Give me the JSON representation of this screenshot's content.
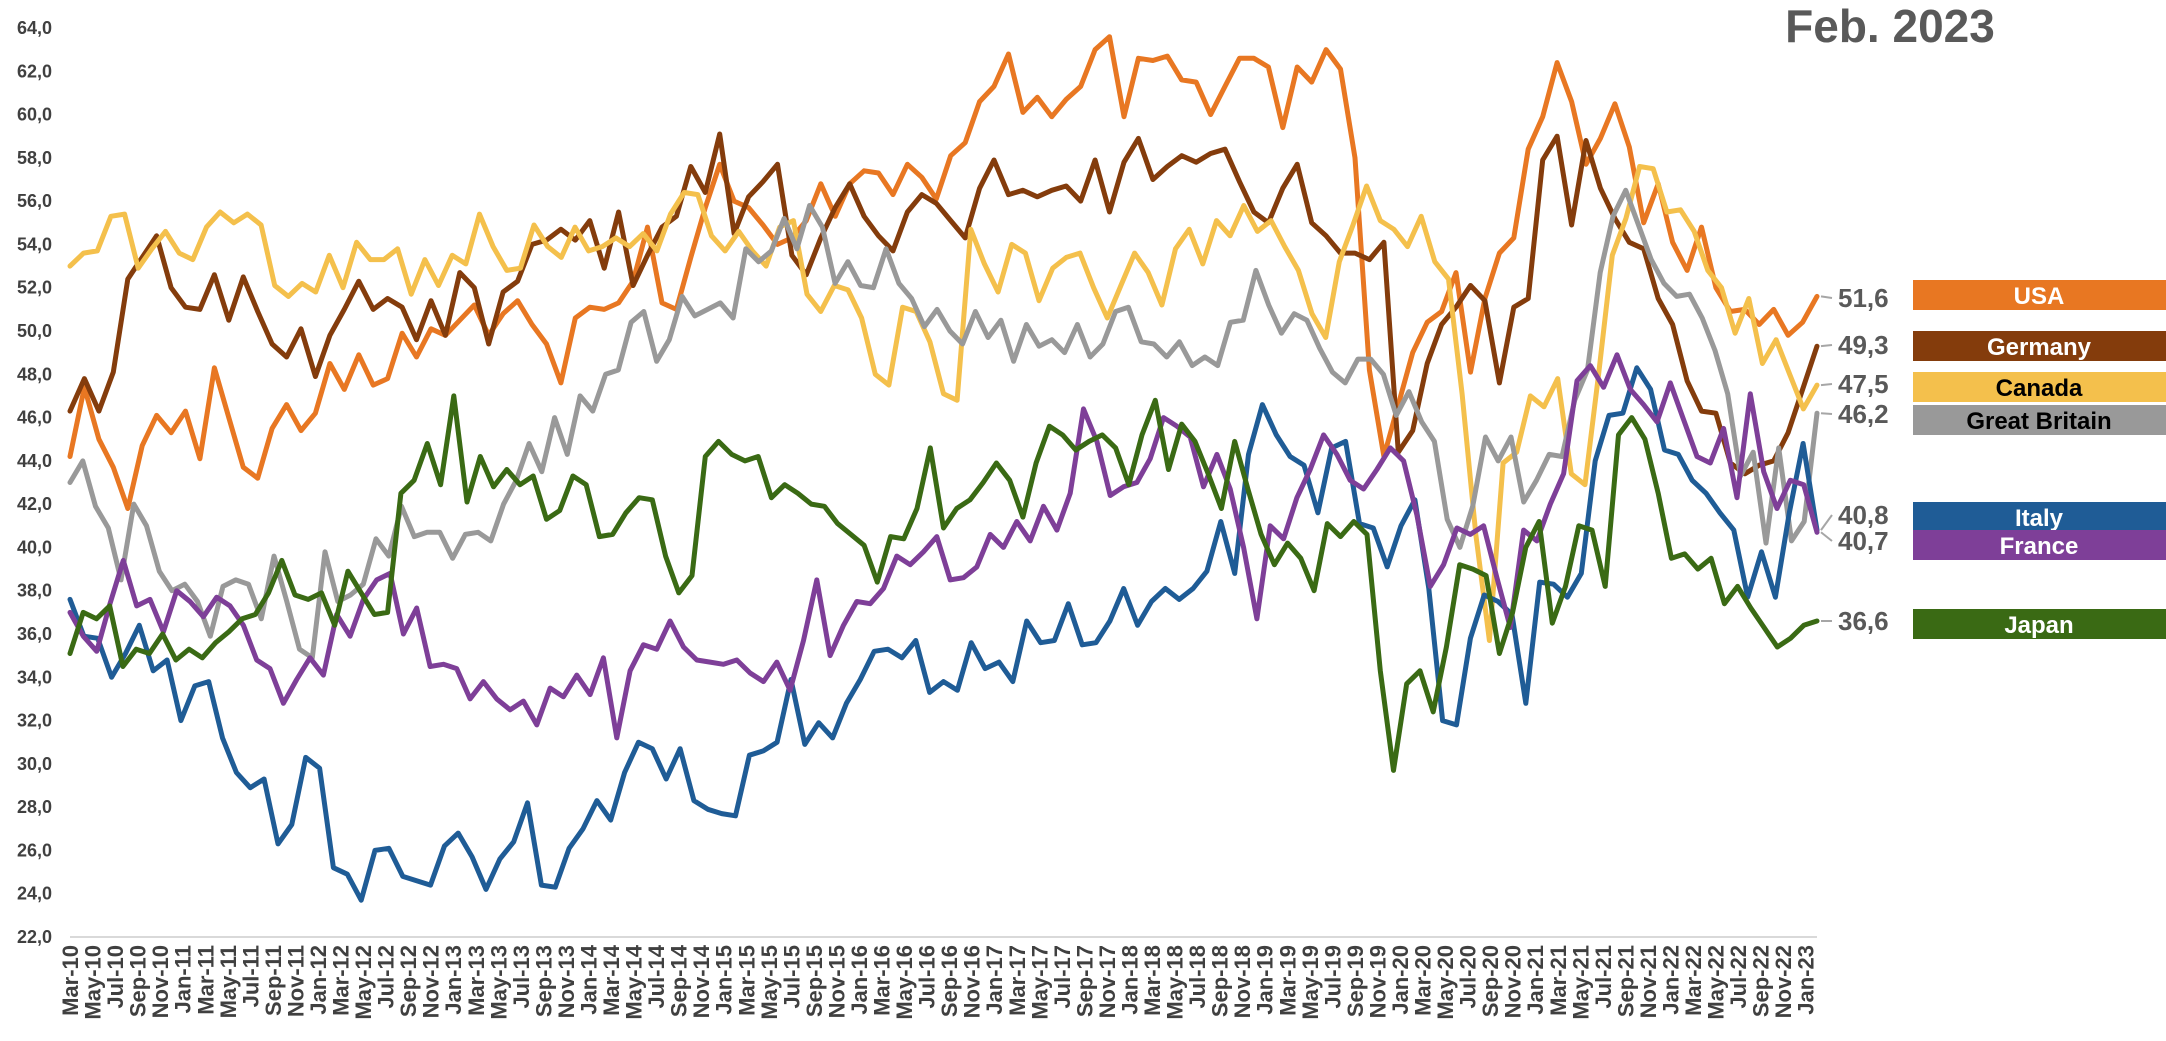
{
  "chart_data": {
    "type": "line",
    "title": "Feb. 2023",
    "xlabel": "",
    "ylabel": "",
    "ylim": [
      22,
      64
    ],
    "yticks": [
      "22,0",
      "24,0",
      "26,0",
      "28,0",
      "30,0",
      "32,0",
      "34,0",
      "36,0",
      "38,0",
      "40,0",
      "42,0",
      "44,0",
      "46,0",
      "48,0",
      "50,0",
      "52,0",
      "54,0",
      "56,0",
      "58,0",
      "60,0",
      "62,0",
      "64,0"
    ],
    "grid": false,
    "legend_position": "right",
    "x_tick_labels": [
      "Mar-10",
      "May-10",
      "Jul-10",
      "Sep-10",
      "Nov-10",
      "Jan-11",
      "Mar-11",
      "May-11",
      "Jul-11",
      "Sep-11",
      "Nov-11",
      "Jan-12",
      "Mar-12",
      "May-12",
      "Jul-12",
      "Sep-12",
      "Nov-12",
      "Jan-13",
      "Mar-13",
      "May-13",
      "Jul-13",
      "Sep-13",
      "Nov-13",
      "Jan-14",
      "Mar-14",
      "May-14",
      "Jul-14",
      "Sep-14",
      "Nov-14",
      "Jan-15",
      "Mar-15",
      "May-15",
      "Jul-15",
      "Sep-15",
      "Nov-15",
      "Jan-16",
      "Mar-16",
      "May-16",
      "Jul-16",
      "Sep-16",
      "Nov-16",
      "Jan-17",
      "Mar-17",
      "May-17",
      "Jul-17",
      "Sep-17",
      "Nov-17",
      "Jan-18",
      "Mar-18",
      "May-18",
      "Jul-18",
      "Sep-18",
      "Nov-18",
      "Jan-19",
      "Mar-19",
      "May-19",
      "Jul-19",
      "Sep-19",
      "Nov-19",
      "Jan-20",
      "Mar-20",
      "May-20",
      "Jul-20",
      "Sep-20",
      "Nov-20",
      "Jan-21",
      "Mar-21",
      "May-21",
      "Jul-21",
      "Sep-21",
      "Nov-21",
      "Jan-22",
      "Mar-22",
      "May-22",
      "Jul-22",
      "Sep-22",
      "Nov-22",
      "Jan-23"
    ],
    "series_x_start": "Mar-10",
    "series_x_end": "Feb-23",
    "series": [
      {
        "name": "USA",
        "color": "#E87722",
        "last_value": "51,6",
        "values": [
          44.2,
          47.4,
          45.0,
          43.7,
          41.8,
          44.7,
          46.1,
          45.3,
          46.3,
          44.1,
          48.3,
          46.0,
          43.7,
          43.2,
          45.5,
          46.6,
          45.4,
          46.2,
          48.5,
          47.3,
          48.9,
          47.5,
          47.8,
          49.9,
          48.8,
          50.1,
          49.8,
          50.5,
          51.2,
          49.8,
          50.8,
          51.4,
          50.3,
          49.4,
          47.6,
          50.6,
          51.1,
          51.0,
          51.3,
          52.3,
          54.8,
          51.3,
          51.0,
          53.4,
          55.7,
          57.7,
          56.0,
          55.7,
          54.9,
          54.0,
          54.3,
          55.1,
          56.8,
          55.3,
          56.8,
          57.4,
          57.3,
          56.3,
          57.7,
          57.1,
          56.1,
          58.1,
          58.7,
          60.6,
          61.3,
          62.8,
          60.1,
          60.8,
          59.9,
          60.7,
          61.3,
          63.0,
          63.6,
          59.9,
          62.6,
          62.5,
          62.7,
          61.6,
          61.5,
          60.0,
          61.3,
          62.6,
          62.6,
          62.2,
          59.4,
          62.2,
          61.5,
          63.0,
          62.1,
          58.0,
          48.2,
          44.2,
          46.6,
          49.0,
          50.4,
          50.9,
          52.7,
          48.1,
          51.5,
          53.6,
          54.3,
          58.4,
          59.9,
          62.4,
          60.6,
          57.7,
          58.9,
          60.5,
          58.5,
          55.0,
          56.8,
          54.1,
          52.8,
          54.8,
          52.0,
          50.9,
          51.0,
          50.3,
          51.0,
          49.8,
          50.4,
          51.6
        ]
      },
      {
        "name": "Germany",
        "color": "#843C0C",
        "last_value": "49,3",
        "values": [
          46.3,
          47.8,
          46.3,
          48.1,
          52.4,
          53.4,
          54.4,
          52.0,
          51.1,
          51.0,
          52.6,
          50.5,
          52.5,
          50.9,
          49.4,
          48.8,
          50.1,
          47.9,
          49.8,
          51.0,
          52.3,
          51.0,
          51.5,
          51.1,
          49.6,
          51.4,
          49.8,
          52.7,
          52.0,
          49.4,
          51.8,
          52.3,
          54.0,
          54.2,
          54.7,
          54.2,
          55.1,
          52.9,
          55.5,
          52.1,
          53.5,
          54.8,
          55.3,
          57.6,
          56.4,
          59.1,
          54.5,
          56.2,
          56.9,
          57.7,
          53.5,
          52.6,
          54.3,
          55.7,
          56.8,
          55.3,
          54.4,
          53.7,
          55.5,
          56.3,
          55.9,
          55.1,
          54.3,
          56.6,
          57.9,
          56.3,
          56.5,
          56.2,
          56.5,
          56.7,
          56.0,
          57.9,
          55.5,
          57.8,
          58.9,
          57.0,
          57.6,
          58.1,
          57.8,
          58.2,
          58.4,
          56.9,
          55.5,
          55.0,
          56.6,
          57.7,
          55.0,
          54.4,
          53.6,
          53.6,
          53.3,
          54.1,
          44.4,
          45.4,
          48.5,
          50.3,
          51.1,
          52.1,
          51.4,
          47.6,
          51.1,
          51.5,
          57.9,
          59.0,
          54.9,
          58.8,
          56.6,
          55.2,
          54.1,
          53.8,
          51.5,
          50.3,
          47.7,
          46.3,
          46.2,
          43.9,
          43.4,
          43.8,
          44.0,
          45.3,
          47.3,
          49.3
        ]
      },
      {
        "name": "Canada",
        "color": "#F4C04C",
        "last_value": "47,5",
        "values": [
          53.0,
          53.6,
          53.7,
          55.3,
          55.4,
          52.9,
          53.8,
          54.6,
          53.6,
          53.3,
          54.8,
          55.5,
          55.0,
          55.4,
          54.9,
          52.1,
          51.6,
          52.2,
          51.8,
          53.5,
          52.0,
          54.1,
          53.3,
          53.3,
          53.8,
          51.7,
          53.3,
          52.1,
          53.5,
          53.1,
          55.4,
          53.9,
          52.8,
          52.9,
          54.9,
          53.9,
          53.4,
          54.8,
          53.7,
          53.9,
          54.3,
          53.9,
          54.5,
          53.7,
          55.4,
          56.4,
          56.3,
          54.4,
          53.7,
          54.6,
          53.7,
          53.0,
          54.8,
          55.1,
          51.7,
          50.9,
          52.1,
          51.9,
          50.6,
          48.0,
          47.5,
          51.1,
          50.9,
          49.5,
          47.1,
          46.8,
          54.7,
          53.1,
          51.8,
          54.0,
          53.6,
          51.4,
          52.9,
          53.4,
          53.6,
          52.0,
          50.6,
          52.1,
          53.6,
          52.7,
          51.2,
          53.8,
          54.7,
          53.1,
          55.1,
          54.4,
          55.8,
          54.6,
          55.1,
          53.9,
          52.8,
          50.8,
          49.7,
          53.2,
          54.9,
          56.7,
          55.1,
          54.7,
          53.9,
          55.3,
          53.2,
          52.4,
          47.1,
          40.6,
          35.7,
          43.9,
          44.4,
          47.0,
          46.5,
          47.8,
          43.4,
          42.9,
          48.0,
          53.5,
          55.2,
          57.6,
          57.5,
          55.5,
          55.6,
          54.6,
          52.8,
          52.0,
          49.9,
          51.5,
          48.5,
          49.6,
          48.0,
          46.4,
          47.5
        ]
      },
      {
        "name": "Great Britain",
        "color": "#999999",
        "last_value": "46,2",
        "values": [
          43.0,
          44.0,
          41.9,
          40.9,
          38.5,
          42.0,
          41.0,
          38.9,
          38.0,
          38.3,
          37.5,
          35.9,
          38.2,
          38.5,
          38.3,
          36.7,
          39.6,
          37.5,
          35.3,
          34.9,
          39.8,
          37.5,
          37.8,
          38.3,
          40.4,
          39.6,
          41.9,
          40.5,
          40.7,
          40.7,
          39.5,
          40.6,
          40.7,
          40.3,
          42.0,
          43.1,
          44.8,
          43.5,
          46.0,
          44.3,
          47.0,
          46.3,
          48.0,
          48.2,
          50.4,
          50.9,
          48.6,
          49.6,
          51.6,
          50.7,
          51.0,
          51.3,
          50.6,
          53.8,
          53.2,
          53.7,
          55.2,
          53.8,
          55.8,
          54.8,
          52.2,
          53.2,
          52.1,
          52.0,
          53.8,
          52.2,
          51.5,
          50.2,
          51.0,
          50.0,
          49.4,
          50.9,
          49.7,
          50.5,
          48.6,
          50.3,
          49.3,
          49.6,
          49.0,
          50.3,
          48.8,
          49.4,
          50.9,
          51.1,
          49.5,
          49.4,
          48.8,
          49.5,
          48.4,
          48.8,
          48.4,
          50.4,
          50.5,
          52.8,
          51.2,
          49.9,
          50.8,
          50.5,
          49.2,
          48.1,
          47.6,
          48.7,
          48.7,
          48.0,
          46.1,
          47.2,
          45.8,
          44.9,
          41.3,
          40.0,
          41.9,
          45.1,
          44.0,
          45.1,
          42.1,
          43.1,
          44.3,
          44.2,
          46.8,
          48.2,
          52.7,
          55.3,
          56.5,
          54.9,
          53.3,
          52.2,
          51.6,
          51.7,
          50.6,
          49.1,
          47.1,
          43.3,
          44.4,
          40.2,
          44.6,
          40.3,
          41.2,
          46.2
        ]
      },
      {
        "name": "Italy",
        "color": "#1F5C96",
        "last_value": "40,8",
        "values": [
          37.6,
          35.9,
          35.8,
          34.0,
          35.1,
          36.4,
          34.3,
          34.8,
          32.0,
          33.6,
          33.8,
          31.2,
          29.6,
          28.9,
          29.3,
          26.3,
          27.2,
          30.3,
          29.8,
          25.2,
          24.9,
          23.7,
          26.0,
          26.1,
          24.8,
          24.6,
          24.4,
          26.2,
          26.8,
          25.7,
          24.2,
          25.6,
          26.4,
          28.2,
          24.4,
          24.3,
          26.1,
          27.0,
          28.3,
          27.4,
          29.6,
          31.0,
          30.7,
          29.3,
          30.7,
          28.3,
          27.9,
          27.7,
          27.6,
          30.4,
          30.6,
          31.0,
          33.9,
          30.9,
          31.9,
          31.2,
          32.8,
          33.9,
          35.2,
          35.3,
          34.9,
          35.7,
          33.3,
          33.8,
          33.4,
          35.6,
          34.4,
          34.7,
          33.8,
          36.6,
          35.6,
          35.7,
          37.4,
          35.5,
          35.6,
          36.6,
          38.1,
          36.4,
          37.5,
          38.1,
          37.6,
          38.1,
          38.9,
          41.2,
          38.8,
          44.3,
          46.6,
          45.2,
          44.2,
          43.8,
          41.6,
          44.6,
          44.9,
          41.1,
          40.9,
          39.1,
          41.0,
          42.2,
          38.1,
          32.0,
          31.8,
          35.8,
          37.8,
          37.5,
          36.9,
          32.8,
          38.4,
          38.3,
          37.7,
          38.8,
          44.0,
          46.1,
          46.2,
          48.3,
          47.3,
          44.5,
          44.3,
          43.1,
          42.5,
          41.6,
          40.8,
          37.7,
          39.8,
          37.7,
          41.6,
          44.8,
          40.8
        ]
      },
      {
        "name": "France",
        "color": "#7E3F98",
        "last_value": "40,7",
        "values": [
          37.0,
          35.9,
          35.2,
          37.4,
          39.4,
          37.3,
          37.6,
          36.1,
          38.0,
          37.5,
          36.8,
          37.7,
          37.3,
          36.4,
          34.8,
          34.4,
          32.8,
          33.9,
          34.9,
          34.1,
          36.9,
          35.9,
          37.6,
          38.5,
          38.8,
          36.0,
          37.2,
          34.5,
          34.6,
          34.4,
          33.0,
          33.8,
          33.0,
          32.5,
          32.9,
          31.8,
          33.5,
          33.1,
          34.1,
          33.2,
          34.9,
          31.2,
          34.3,
          35.5,
          35.3,
          36.6,
          35.4,
          34.8,
          34.7,
          34.6,
          34.8,
          34.2,
          33.8,
          34.7,
          33.4,
          35.7,
          38.5,
          35.0,
          36.4,
          37.5,
          37.4,
          38.1,
          39.6,
          39.2,
          39.8,
          40.5,
          38.5,
          38.6,
          39.1,
          40.6,
          40.0,
          41.2,
          40.3,
          41.9,
          40.8,
          42.5,
          46.4,
          44.9,
          42.4,
          42.8,
          43.0,
          44.1,
          46.0,
          45.6,
          45.1,
          42.8,
          44.3,
          42.7,
          40.0,
          36.7,
          41.0,
          40.4,
          42.3,
          43.6,
          45.2,
          44.3,
          43.1,
          42.7,
          43.6,
          44.6,
          44.0,
          41.5,
          38.2,
          39.2,
          40.9,
          40.6,
          41.0,
          38.6,
          36.3,
          40.8,
          40.3,
          42.0,
          43.4,
          47.7,
          48.4,
          47.4,
          48.9,
          47.3,
          46.6,
          45.8,
          47.6,
          45.9,
          44.2,
          43.9,
          45.5,
          42.3,
          47.1,
          43.5,
          41.8,
          43.1,
          42.9,
          40.7
        ]
      },
      {
        "name": "Japan",
        "color": "#3A6A14",
        "last_value": "36,6",
        "values": [
          35.1,
          37.0,
          36.7,
          37.3,
          34.5,
          35.3,
          35.1,
          36.0,
          34.8,
          35.3,
          34.9,
          35.6,
          36.1,
          36.7,
          36.9,
          37.9,
          39.4,
          37.8,
          37.6,
          37.9,
          36.4,
          38.9,
          37.9,
          36.9,
          37.0,
          42.5,
          43.1,
          44.8,
          42.9,
          47.0,
          42.1,
          44.2,
          42.8,
          43.6,
          42.9,
          43.3,
          41.3,
          41.7,
          43.3,
          42.9,
          40.5,
          40.6,
          41.6,
          42.3,
          42.2,
          39.6,
          37.9,
          38.7,
          44.2,
          44.9,
          44.3,
          44.0,
          44.2,
          42.3,
          42.9,
          42.5,
          42.0,
          41.9,
          41.1,
          40.6,
          40.1,
          38.4,
          40.5,
          40.4,
          41.8,
          44.6,
          40.9,
          41.8,
          42.2,
          43.0,
          43.9,
          43.1,
          41.4,
          43.9,
          45.6,
          45.2,
          44.5,
          44.9,
          45.2,
          44.6,
          42.9,
          45.2,
          46.8,
          43.6,
          45.7,
          44.9,
          43.4,
          41.8,
          44.9,
          42.7,
          40.6,
          39.2,
          40.2,
          39.5,
          38.0,
          41.1,
          40.5,
          41.2,
          40.6,
          34.3,
          29.7,
          33.7,
          34.3,
          32.4,
          35.4,
          39.2,
          39.0,
          38.7,
          35.1,
          37.0,
          40.0,
          41.2,
          36.5,
          38.2,
          41.0,
          40.8,
          38.2,
          45.2,
          46.0,
          45.0,
          42.5,
          39.5,
          39.7,
          39.0,
          39.5,
          37.4,
          38.2,
          37.2,
          36.3,
          35.4,
          35.8,
          36.4,
          36.6
        ]
      }
    ]
  }
}
